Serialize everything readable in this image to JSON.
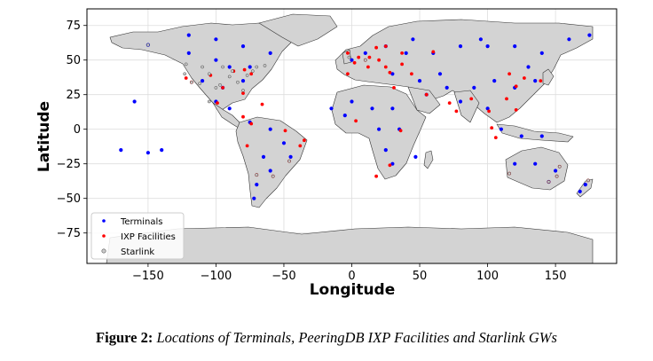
{
  "chart_data": {
    "type": "scatter",
    "xlabel": "Longitude",
    "ylabel": "Latitude",
    "xlim": [
      -195,
      195
    ],
    "ylim": [
      -97,
      87
    ],
    "xticks": [
      -150,
      -100,
      -50,
      0,
      50,
      100,
      150
    ],
    "xtick_labels": [
      "−150",
      "−100",
      "−50",
      "0",
      "50",
      "100",
      "150"
    ],
    "yticks": [
      75,
      50,
      25,
      0,
      -25,
      -50,
      -75
    ],
    "ytick_labels": [
      "75",
      "50",
      "25",
      "0",
      "−25",
      "−50",
      "−75"
    ],
    "grid": true,
    "legend_position": "lower-left",
    "background_map": "world land outlines (light gray)",
    "series": [
      {
        "name": "Terminals",
        "color": "#0000ff",
        "marker": "dot",
        "points": [
          [
            -150,
            61
          ],
          [
            -120,
            55
          ],
          [
            -100,
            50
          ],
          [
            -90,
            45
          ],
          [
            -75,
            45
          ],
          [
            -110,
            35
          ],
          [
            -95,
            30
          ],
          [
            -80,
            35
          ],
          [
            -100,
            20
          ],
          [
            -90,
            15
          ],
          [
            -75,
            5
          ],
          [
            -60,
            0
          ],
          [
            -50,
            -10
          ],
          [
            -65,
            -20
          ],
          [
            -45,
            -20
          ],
          [
            -60,
            -30
          ],
          [
            -70,
            -40
          ],
          [
            -72,
            -50
          ],
          [
            -120,
            68
          ],
          [
            -100,
            65
          ],
          [
            -80,
            60
          ],
          [
            -60,
            55
          ],
          [
            -160,
            20
          ],
          [
            -150,
            -17
          ],
          [
            -140,
            -15
          ],
          [
            -170,
            -15
          ],
          [
            0,
            50
          ],
          [
            10,
            55
          ],
          [
            25,
            60
          ],
          [
            40,
            55
          ],
          [
            60,
            55
          ],
          [
            80,
            60
          ],
          [
            100,
            60
          ],
          [
            120,
            60
          ],
          [
            140,
            55
          ],
          [
            160,
            65
          ],
          [
            175,
            68
          ],
          [
            30,
            40
          ],
          [
            50,
            35
          ],
          [
            70,
            30
          ],
          [
            90,
            30
          ],
          [
            105,
            35
          ],
          [
            120,
            30
          ],
          [
            135,
            35
          ],
          [
            0,
            20
          ],
          [
            15,
            15
          ],
          [
            30,
            15
          ],
          [
            -5,
            10
          ],
          [
            20,
            0
          ],
          [
            35,
            0
          ],
          [
            25,
            -15
          ],
          [
            30,
            -25
          ],
          [
            47,
            -20
          ],
          [
            80,
            20
          ],
          [
            100,
            15
          ],
          [
            110,
            0
          ],
          [
            125,
            -5
          ],
          [
            140,
            -5
          ],
          [
            120,
            -25
          ],
          [
            135,
            -25
          ],
          [
            150,
            -30
          ],
          [
            145,
            -38
          ],
          [
            172,
            -40
          ],
          [
            168,
            -45
          ],
          [
            -15,
            15
          ],
          [
            45,
            65
          ],
          [
            95,
            65
          ],
          [
            130,
            45
          ],
          [
            65,
            40
          ],
          [
            55,
            25
          ]
        ]
      },
      {
        "name": "IXP Facilities",
        "color": "#ff0000",
        "marker": "dot",
        "points": [
          [
            5,
            52
          ],
          [
            2,
            48
          ],
          [
            10,
            50
          ],
          [
            13,
            52
          ],
          [
            20,
            50
          ],
          [
            -3,
            40
          ],
          [
            12,
            45
          ],
          [
            25,
            45
          ],
          [
            -3,
            55
          ],
          [
            18,
            59
          ],
          [
            25,
            60
          ],
          [
            37,
            55
          ],
          [
            28,
            41
          ],
          [
            -74,
            40
          ],
          [
            -87,
            42
          ],
          [
            -118,
            34
          ],
          [
            -122,
            37
          ],
          [
            -80,
            26
          ],
          [
            -95,
            30
          ],
          [
            -104,
            39
          ],
          [
            -79,
            43
          ],
          [
            -99,
            19
          ],
          [
            -46,
            -23
          ],
          [
            -58,
            -34
          ],
          [
            -70,
            -33
          ],
          [
            -77,
            -12
          ],
          [
            -74,
            4
          ],
          [
            3,
            6
          ],
          [
            31,
            30
          ],
          [
            28,
            -26
          ],
          [
            36,
            -1
          ],
          [
            18,
            -34
          ],
          [
            55,
            25
          ],
          [
            72,
            19
          ],
          [
            77,
            13
          ],
          [
            88,
            22
          ],
          [
            101,
            13
          ],
          [
            103,
            1
          ],
          [
            106,
            -6
          ],
          [
            114,
            22
          ],
          [
            121,
            31
          ],
          [
            116,
            40
          ],
          [
            127,
            37
          ],
          [
            139,
            35
          ],
          [
            121,
            14
          ],
          [
            151,
            -34
          ],
          [
            145,
            -38
          ],
          [
            153,
            -27
          ],
          [
            116,
            -32
          ],
          [
            174,
            -37
          ],
          [
            60,
            56
          ],
          [
            37,
            47
          ],
          [
            44,
            40
          ],
          [
            -66,
            18
          ],
          [
            -80,
            9
          ],
          [
            -38,
            -12
          ],
          [
            -35,
            -8
          ],
          [
            -49,
            -1
          ]
        ]
      },
      {
        "name": "Starlink",
        "color": "#cccccc",
        "marker": "circle",
        "points": [
          [
            -122,
            47
          ],
          [
            -118,
            34
          ],
          [
            -112,
            33
          ],
          [
            -105,
            40
          ],
          [
            -97,
            32
          ],
          [
            -90,
            38
          ],
          [
            -84,
            34
          ],
          [
            -77,
            39
          ],
          [
            -73,
            42
          ],
          [
            -88,
            42
          ],
          [
            -95,
            45
          ],
          [
            -110,
            45
          ],
          [
            -100,
            30
          ],
          [
            -80,
            28
          ],
          [
            -123,
            40
          ],
          [
            -70,
            45
          ],
          [
            -64,
            46
          ],
          [
            -105,
            20
          ],
          [
            -58,
            -34
          ],
          [
            -46,
            -23
          ],
          [
            -70,
            -33
          ],
          [
            -2,
            52
          ],
          [
            10,
            50
          ],
          [
            151,
            -34
          ],
          [
            145,
            -38
          ],
          [
            153,
            -27
          ],
          [
            116,
            -32
          ],
          [
            174,
            -37
          ],
          [
            -150,
            61
          ]
        ]
      }
    ]
  },
  "caption": {
    "label": "Figure 2:",
    "text": "Locations of Terminals, PeeringDB IXP Facilities and Starlink GWs"
  }
}
